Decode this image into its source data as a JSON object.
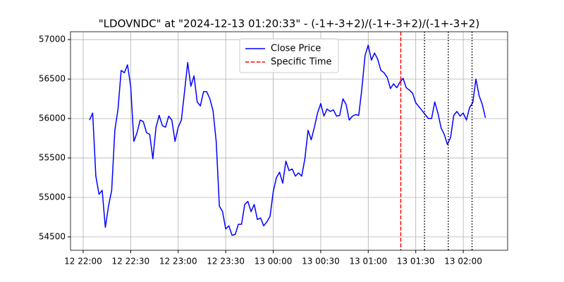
{
  "chart_data": {
    "type": "line",
    "title": "\"LDOVNDC\" at \"2024-12-13 01:20:33\" - (-1+-3+2)/(-1+-3+2)/(-1+-3+2)",
    "x": [
      "12 22:04",
      "12 22:06",
      "12 22:08",
      "12 22:10",
      "12 22:12",
      "12 22:14",
      "12 22:16",
      "12 22:18",
      "12 22:20",
      "12 22:22",
      "12 22:24",
      "12 22:26",
      "12 22:28",
      "12 22:30",
      "12 22:32",
      "12 22:34",
      "12 22:36",
      "12 22:38",
      "12 22:40",
      "12 22:42",
      "12 22:44",
      "12 22:46",
      "12 22:48",
      "12 22:50",
      "12 22:52",
      "12 22:54",
      "12 22:56",
      "12 22:58",
      "12 23:00",
      "12 23:02",
      "12 23:04",
      "12 23:06",
      "12 23:08",
      "12 23:10",
      "12 23:12",
      "12 23:14",
      "12 23:16",
      "12 23:18",
      "12 23:20",
      "12 23:22",
      "12 23:24",
      "12 23:26",
      "12 23:28",
      "12 23:30",
      "12 23:32",
      "12 23:34",
      "12 23:36",
      "12 23:38",
      "12 23:40",
      "12 23:42",
      "12 23:44",
      "12 23:46",
      "12 23:48",
      "12 23:50",
      "12 23:52",
      "12 23:54",
      "12 23:56",
      "12 23:58",
      "13 00:00",
      "13 00:02",
      "13 00:04",
      "13 00:06",
      "13 00:08",
      "13 00:10",
      "13 00:12",
      "13 00:14",
      "13 00:16",
      "13 00:18",
      "13 00:20",
      "13 00:22",
      "13 00:24",
      "13 00:26",
      "13 00:28",
      "13 00:30",
      "13 00:32",
      "13 00:34",
      "13 00:36",
      "13 00:38",
      "13 00:40",
      "13 00:42",
      "13 00:44",
      "13 00:46",
      "13 00:48",
      "13 00:50",
      "13 00:52",
      "13 00:54",
      "13 00:56",
      "13 00:58",
      "13 01:00",
      "13 01:02",
      "13 01:04",
      "13 01:06",
      "13 01:08",
      "13 01:10",
      "13 01:12",
      "13 01:14",
      "13 01:16",
      "13 01:18",
      "13 01:20",
      "13 01:22",
      "13 01:24",
      "13 01:26",
      "13 01:28",
      "13 01:30",
      "13 01:32",
      "13 01:34",
      "13 01:36",
      "13 01:38",
      "13 01:40",
      "13 01:42",
      "13 01:44",
      "13 01:46",
      "13 01:48",
      "13 01:50",
      "13 01:52",
      "13 01:54",
      "13 01:56",
      "13 01:58",
      "13 02:00",
      "13 02:02",
      "13 02:04",
      "13 02:06",
      "13 02:08",
      "13 02:10",
      "13 02:12",
      "13 02:14"
    ],
    "series": [
      {
        "name": "Close Price",
        "color": "#0000ff",
        "values": [
          55980,
          56070,
          55270,
          55040,
          55090,
          54620,
          54890,
          55090,
          55850,
          56120,
          56610,
          56580,
          56680,
          56410,
          55710,
          55820,
          55980,
          55960,
          55820,
          55800,
          55490,
          55890,
          56040,
          55910,
          55890,
          56030,
          55980,
          55710,
          55890,
          55980,
          56340,
          56710,
          56410,
          56540,
          56210,
          56160,
          56340,
          56340,
          56250,
          56100,
          55710,
          54890,
          54820,
          54600,
          54640,
          54520,
          54530,
          54660,
          54660,
          54910,
          54950,
          54820,
          54910,
          54720,
          54740,
          54640,
          54690,
          54760,
          55070,
          55250,
          55320,
          55180,
          55460,
          55340,
          55360,
          55270,
          55310,
          55270,
          55490,
          55850,
          55730,
          55890,
          56070,
          56190,
          56030,
          56120,
          56090,
          56110,
          56030,
          56040,
          56250,
          56180,
          55980,
          56030,
          56050,
          56040,
          56380,
          56800,
          56930,
          56740,
          56830,
          56750,
          56610,
          56580,
          56520,
          56380,
          56440,
          56390,
          56460,
          56510,
          56390,
          56360,
          56320,
          56200,
          56150,
          56100,
          56050,
          56000,
          56000,
          56210,
          56070,
          55880,
          55800,
          55670,
          55760,
          56040,
          56090,
          56030,
          56070,
          55980,
          56140,
          56200,
          56500,
          56290,
          56180,
          56010
        ]
      }
    ],
    "vlines": [
      {
        "name": "Specific Time",
        "color": "#ff0000",
        "style": "dashed",
        "x": "13 01:20:33"
      },
      {
        "color": "#000000",
        "style": "dotted",
        "x": "13 01:35:33"
      },
      {
        "color": "#000000",
        "style": "dotted",
        "x": "13 01:50:33"
      },
      {
        "color": "#000000",
        "style": "dotted",
        "x": "13 02:05:33"
      }
    ],
    "xlim": [
      "12 21:52",
      "13 02:28"
    ],
    "xticks": [
      "12 22:00",
      "12 22:30",
      "12 23:00",
      "12 23:30",
      "13 00:00",
      "13 00:30",
      "13 01:00",
      "13 01:30",
      "13 02:00"
    ],
    "ylim": [
      54330,
      57100
    ],
    "yticks": [
      54500,
      55000,
      55500,
      56000,
      56500,
      57000
    ],
    "grid": true,
    "legend": "upper center"
  }
}
